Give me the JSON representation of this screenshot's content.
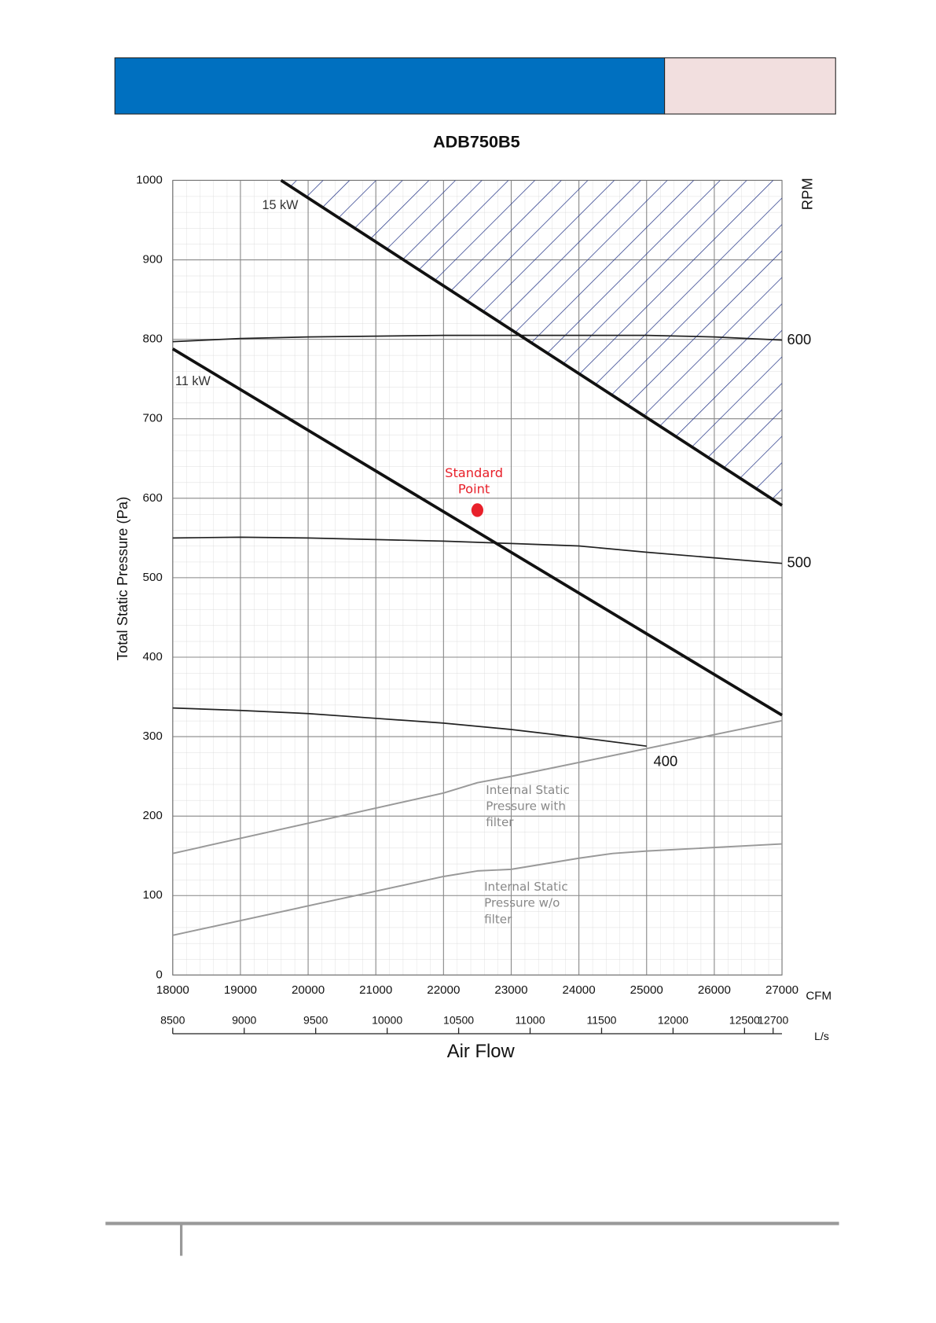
{
  "chart_data": {
    "type": "line",
    "title": "ADB750B5",
    "y_label": "Total Static Pressure (Pa)",
    "y2_label": "RPM",
    "x_unit": "CFM",
    "x2_unit": "L/s",
    "x_label": "Air Flow",
    "xlim": [
      18000,
      27000
    ],
    "xticks": [
      18000,
      19000,
      20000,
      21000,
      22000,
      23000,
      24000,
      25000,
      26000,
      27000
    ],
    "x2lim": [
      8500,
      12762
    ],
    "x2ticks": [
      8500,
      9000,
      9500,
      10000,
      10500,
      11000,
      11500,
      12000,
      12500,
      12700
    ],
    "ylim": [
      0,
      1000
    ],
    "yticks": [
      0,
      100,
      200,
      300,
      400,
      500,
      600,
      700,
      800,
      900,
      1000
    ],
    "grid": true,
    "series": [
      {
        "name": "600",
        "color": "#222222",
        "line_width": 1.6,
        "x": [
          18000,
          19000,
          20000,
          21000,
          22000,
          23000,
          24000,
          25000,
          26000,
          27000
        ],
        "values": [
          797,
          801,
          803,
          804,
          805,
          805,
          805,
          805,
          803,
          799
        ]
      },
      {
        "name": "500",
        "color": "#222222",
        "line_width": 1.6,
        "x": [
          18000,
          19000,
          20000,
          21000,
          22000,
          23000,
          24000,
          25000,
          26000,
          27000
        ],
        "values": [
          550,
          551,
          550,
          548,
          546,
          543,
          540,
          532,
          525,
          518
        ]
      },
      {
        "name": "400",
        "color": "#222222",
        "line_width": 1.6,
        "x": [
          18000,
          19000,
          20000,
          21000,
          22000,
          23000,
          24000,
          25000
        ],
        "values": [
          336,
          333,
          329,
          323,
          317,
          309,
          299,
          288
        ]
      },
      {
        "name": "15 kW",
        "color": "#111111",
        "line_width": 3.5,
        "hatched_above": true,
        "x": [
          19600,
          27000
        ],
        "values": [
          1000,
          591
        ]
      },
      {
        "name": "11 kW",
        "color": "#111111",
        "line_width": 3.5,
        "x": [
          18000,
          27000
        ],
        "values": [
          788,
          327
        ]
      },
      {
        "name": "Internal Static Pressure with filter",
        "color": "#999999",
        "line_width": 1.8,
        "x": [
          18000,
          22000,
          22500,
          23000,
          27000
        ],
        "values": [
          153,
          229,
          242,
          250,
          320
        ]
      },
      {
        "name": "Internal Static Pressure w/o filter",
        "color": "#999999",
        "line_width": 1.8,
        "x": [
          18000,
          22000,
          22500,
          23000,
          24000,
          24500,
          25000,
          27000
        ],
        "values": [
          50,
          124,
          131,
          133,
          147,
          153,
          156,
          165
        ]
      },
      {
        "name": "Standard Point",
        "color": "#e8202a",
        "mode": "markers",
        "x": [
          22500
        ],
        "values": [
          585
        ]
      }
    ]
  }
}
